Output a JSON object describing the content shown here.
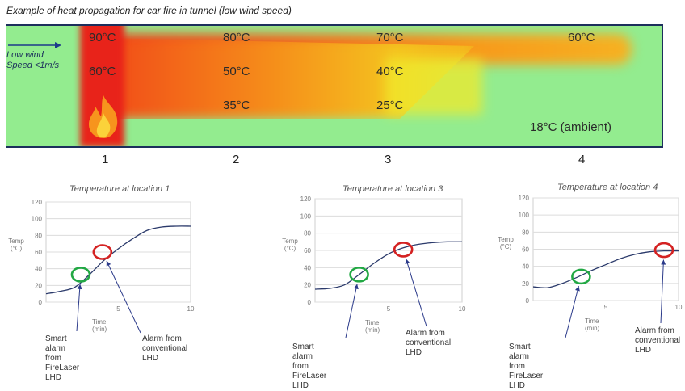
{
  "caption": "Example of heat propagation for car fire in tunnel (low wind speed)",
  "tunnel": {
    "wind_line1": "Low wind",
    "wind_line2": "Speed <1m/s",
    "temps": {
      "t90": "90°C",
      "t80": "80°C",
      "t70": "70°C",
      "t60_top": "60°C",
      "t60": "60°C",
      "t50": "50°C",
      "t40": "40°C",
      "t35": "35°C",
      "t25": "25°C",
      "ambient": "18°C (ambient)"
    },
    "locations": [
      "1",
      "2",
      "3",
      "4"
    ],
    "colors": {
      "air": "#93ec8f",
      "fire": "#e8231a",
      "hot": "#f25a17",
      "warm": "#f7a21a",
      "yellow": "#f2e521",
      "border": "#1c2f5c"
    }
  },
  "charts_common": {
    "y_title_1": "Temp",
    "y_title_2": "(°C)",
    "x_title": "Time (min)",
    "yticks": [
      "0",
      "20",
      "40",
      "60",
      "80",
      "100",
      "120"
    ],
    "xticks": [
      "5",
      "10"
    ],
    "smart_alarm": [
      "Smart alarm",
      "from FireLaser",
      "LHD"
    ],
    "conv_alarm": [
      "Alarm from",
      "conventional",
      "LHD"
    ],
    "smart_color": "#22a844",
    "conv_color": "#d42222"
  },
  "chart_data": [
    {
      "type": "line",
      "title": "Temperature at location 1",
      "xlabel": "Time (min)",
      "ylabel": "Temp (°C)",
      "xlim": [
        0,
        10
      ],
      "ylim": [
        0,
        120
      ],
      "x": [
        0,
        1,
        2,
        3,
        4,
        5,
        6,
        7,
        8,
        9,
        10
      ],
      "y": [
        10,
        13,
        18,
        33,
        50,
        64,
        76,
        86,
        90,
        91,
        91
      ],
      "markers": [
        {
          "name": "Smart alarm from FireLaser LHD",
          "x": 2.4,
          "y": 33
        },
        {
          "name": "Alarm from conventional LHD",
          "x": 3.9,
          "y": 60
        }
      ]
    },
    {
      "type": "line",
      "title": "Temperature at location 3",
      "xlabel": "Time (min)",
      "ylabel": "Temp (°C)",
      "xlim": [
        0,
        10
      ],
      "ylim": [
        0,
        120
      ],
      "x": [
        0,
        1,
        2,
        3,
        4,
        5,
        6,
        7,
        8,
        9,
        10
      ],
      "y": [
        15,
        16,
        20,
        32,
        45,
        56,
        63,
        67,
        69,
        70,
        70
      ],
      "markers": [
        {
          "name": "Smart alarm from FireLaser LHD",
          "x": 3.0,
          "y": 32
        },
        {
          "name": "Alarm from conventional LHD",
          "x": 6.0,
          "y": 61
        }
      ]
    },
    {
      "type": "line",
      "title": "Temperature at location 4",
      "xlabel": "Time (min)",
      "ylabel": "Temp (°C)",
      "xlim": [
        0,
        10
      ],
      "ylim": [
        0,
        120
      ],
      "x": [
        0,
        1,
        2,
        3,
        4,
        5,
        6,
        7,
        8,
        9,
        10
      ],
      "y": [
        16,
        15,
        20,
        27,
        35,
        42,
        49,
        54,
        57,
        58,
        58
      ],
      "markers": [
        {
          "name": "Smart alarm from FireLaser LHD",
          "x": 3.3,
          "y": 28
        },
        {
          "name": "Alarm from conventional LHD",
          "x": 9.0,
          "y": 59
        }
      ]
    }
  ]
}
